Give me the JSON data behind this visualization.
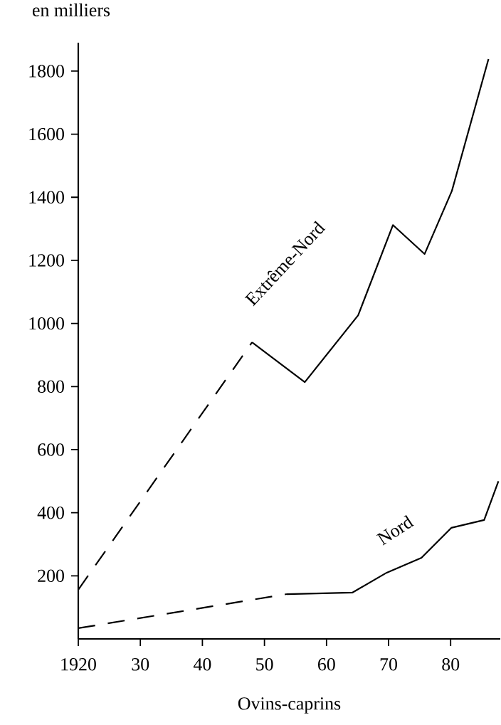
{
  "chart_data": {
    "type": "line",
    "xlabel": "Ovins-caprins",
    "ylabel": "en milliers",
    "xlim": [
      1920,
      1988
    ],
    "ylim": [
      0,
      1890
    ],
    "xticks": [
      {
        "value": 1920,
        "label": "1920"
      },
      {
        "value": 1930,
        "label": "30"
      },
      {
        "value": 1940,
        "label": "40"
      },
      {
        "value": 1950,
        "label": "50"
      },
      {
        "value": 1960,
        "label": "60"
      },
      {
        "value": 1970,
        "label": "70"
      },
      {
        "value": 1980,
        "label": "80"
      }
    ],
    "yticks": [
      200,
      400,
      600,
      800,
      1000,
      1200,
      1400,
      1600,
      1800
    ],
    "grid": false,
    "marker": "none",
    "series": [
      {
        "color": "#000000",
        "line_style": "dashed",
        "x": [
          1920,
          1948
        ],
        "values": [
          156,
          940
        ]
      },
      {
        "name": "Extrême-Nord",
        "color": "#000000",
        "line_style": "solid",
        "x": [
          1948,
          1956.5,
          1965.1,
          1970.7,
          1975.8,
          1980.2,
          1986.1
        ],
        "values": [
          940,
          814,
          1026,
          1312,
          1220,
          1420,
          1838
        ]
      },
      {
        "color": "#000000",
        "line_style": "dashed",
        "x": [
          1920,
          1953.6
        ],
        "values": [
          34,
          142
        ]
      },
      {
        "name": "Nord",
        "color": "#000000",
        "line_style": "solid",
        "x": [
          1953.6,
          1964.2,
          1969.7,
          1975.3,
          1980.1,
          1985.4,
          1987.7
        ],
        "values": [
          142,
          147,
          210,
          257,
          352,
          377,
          500
        ]
      }
    ]
  }
}
